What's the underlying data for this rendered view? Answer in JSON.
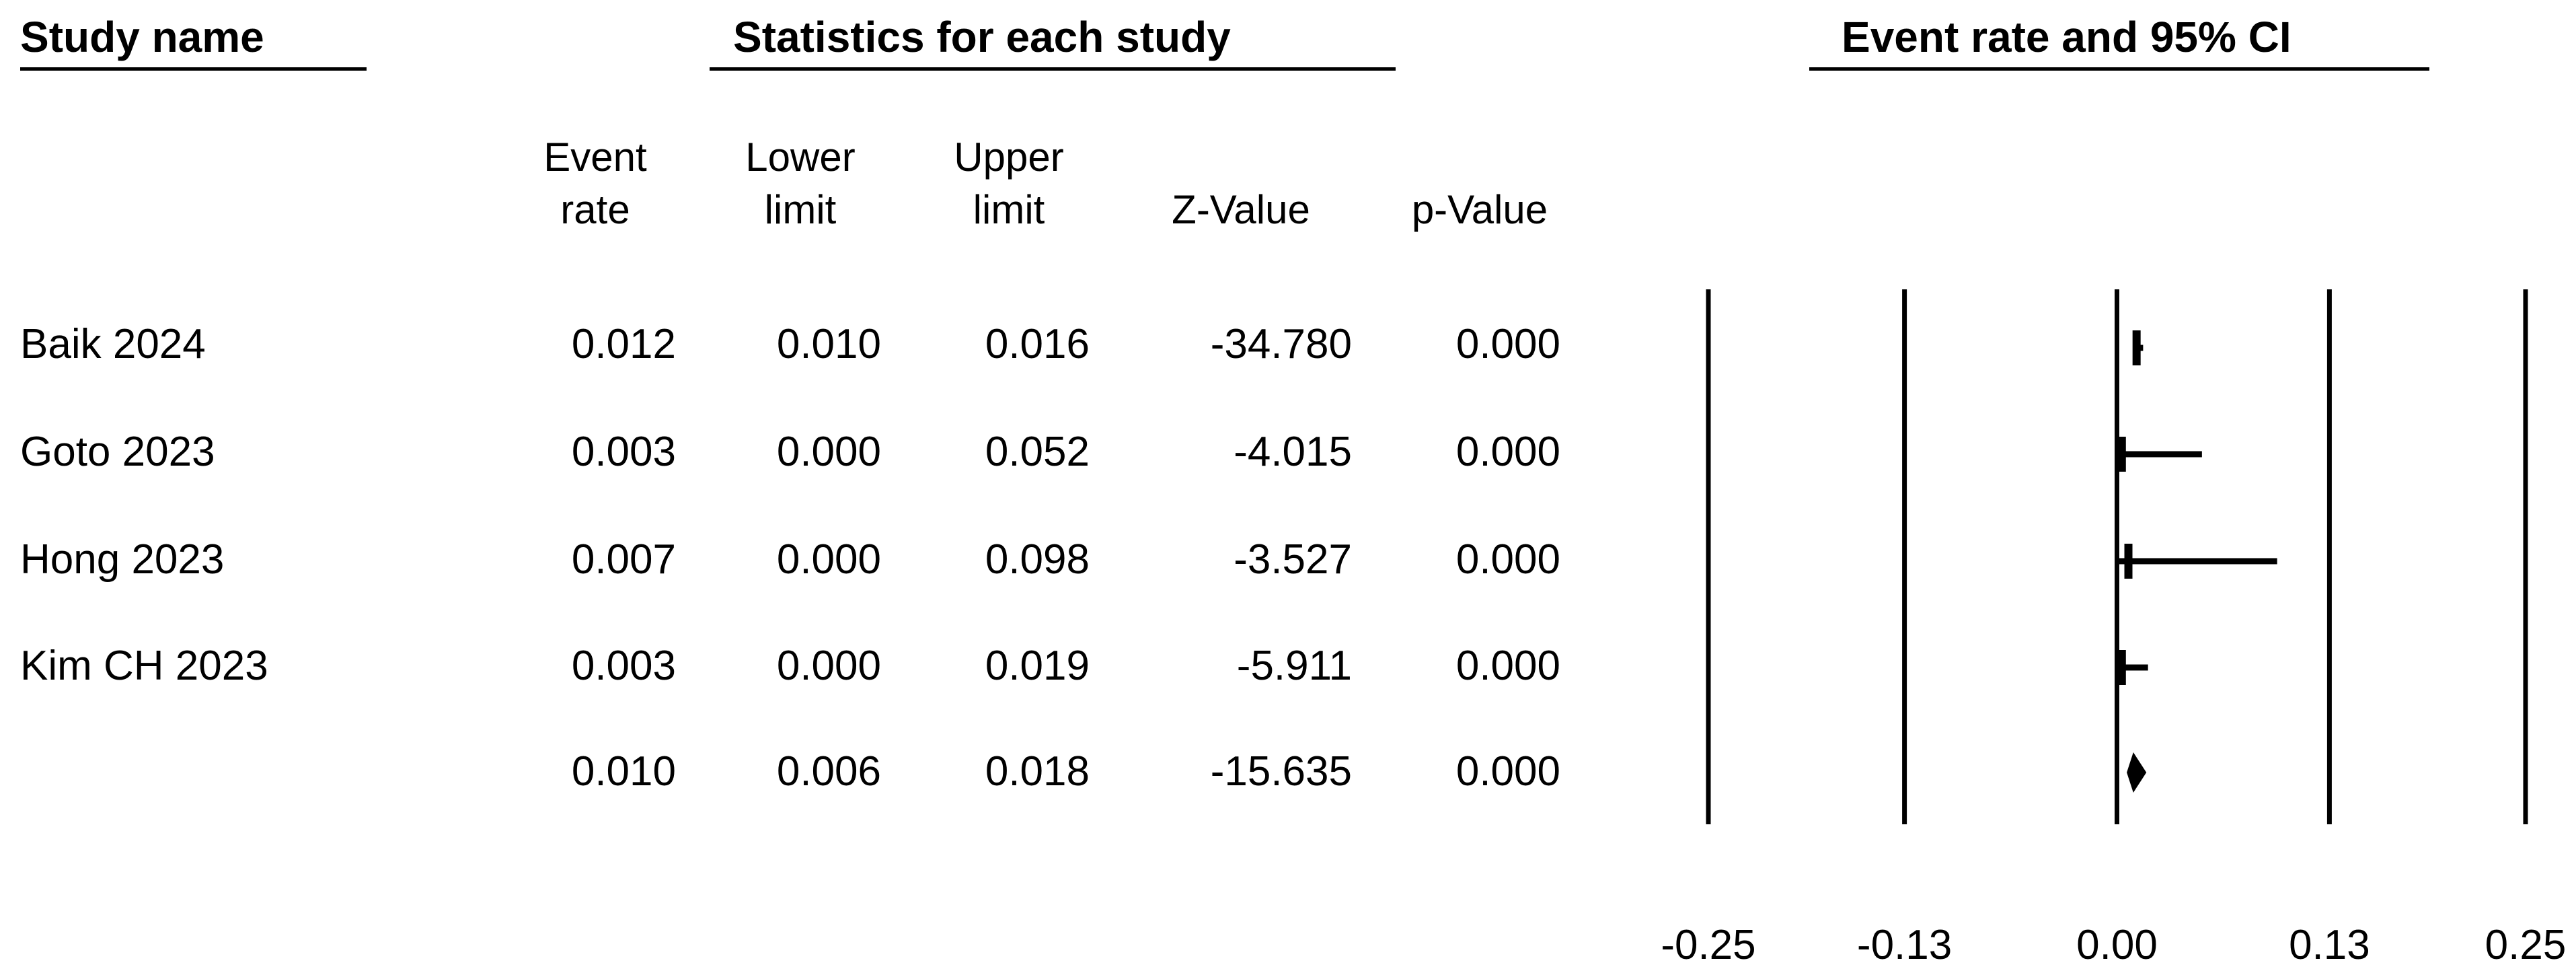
{
  "headers": {
    "study_name": "Study name",
    "stats": "Statistics for each study",
    "plot": "Event rate and 95% CI"
  },
  "columns": [
    {
      "line1": "Event",
      "line2": "rate"
    },
    {
      "line1": "Lower",
      "line2": "limit"
    },
    {
      "line1": "Upper",
      "line2": "limit"
    },
    {
      "line1": "",
      "line2": "Z-Value"
    },
    {
      "line1": "",
      "line2": "p-Value"
    }
  ],
  "rows": [
    {
      "study": "Baik 2024",
      "event_rate": "0.012",
      "lower": "0.010",
      "upper": "0.016",
      "z": "-34.780",
      "p": "0.000"
    },
    {
      "study": "Goto 2023",
      "event_rate": "0.003",
      "lower": "0.000",
      "upper": "0.052",
      "z": "-4.015",
      "p": "0.000"
    },
    {
      "study": "Hong 2023",
      "event_rate": "0.007",
      "lower": "0.000",
      "upper": "0.098",
      "z": "-3.527",
      "p": "0.000"
    },
    {
      "study": "Kim CH 2023",
      "event_rate": "0.003",
      "lower": "0.000",
      "upper": "0.019",
      "z": "-5.911",
      "p": "0.000"
    },
    {
      "study": "",
      "event_rate": "0.010",
      "lower": "0.006",
      "upper": "0.018",
      "z": "-15.635",
      "p": "0.000"
    }
  ],
  "chart_data": {
    "type": "forest",
    "title": "Event rate and 95% CI",
    "xlim": [
      -0.25,
      0.25
    ],
    "xticks": [
      -0.25,
      -0.13,
      0.0,
      0.13,
      0.25
    ],
    "xtick_labels": [
      "-0.25",
      "-0.13",
      "0.00",
      "0.13",
      "0.25"
    ],
    "studies": [
      {
        "name": "Baik 2024",
        "estimate": 0.012,
        "lower": 0.01,
        "upper": 0.016
      },
      {
        "name": "Goto 2023",
        "estimate": 0.003,
        "lower": 0.0,
        "upper": 0.052
      },
      {
        "name": "Hong 2023",
        "estimate": 0.007,
        "lower": 0.0,
        "upper": 0.098
      },
      {
        "name": "Kim CH 2023",
        "estimate": 0.003,
        "lower": 0.0,
        "upper": 0.019
      }
    ],
    "summary": {
      "estimate": 0.01,
      "lower": 0.006,
      "upper": 0.018
    },
    "grid": true
  }
}
